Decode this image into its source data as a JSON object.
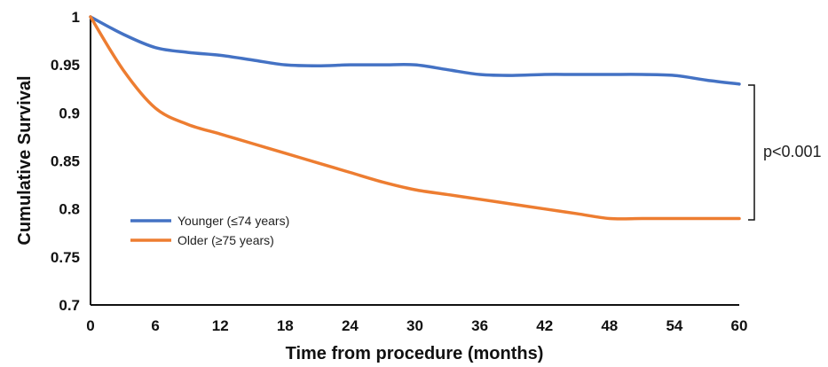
{
  "chart_data": {
    "type": "line",
    "xlabel": "Time from procedure (months)",
    "ylabel": "Cumulative Survival",
    "xlim": [
      0,
      60
    ],
    "ylim": [
      0.7,
      1
    ],
    "x_ticks": [
      "0",
      "6",
      "12",
      "18",
      "24",
      "30",
      "36",
      "42",
      "48",
      "54",
      "60"
    ],
    "y_ticks": [
      "1",
      "0.95",
      "0.9",
      "0.85",
      "0.8",
      "0.75",
      "0.7"
    ],
    "grid": false,
    "legend_position": "bottom-left",
    "annotation": "p<0.001",
    "series": [
      {
        "name": "Younger (≤74 years)",
        "color": "#4472C4",
        "x": [
          0,
          3,
          6,
          9,
          12,
          15,
          18,
          21,
          24,
          27,
          30,
          33,
          36,
          39,
          42,
          45,
          48,
          51,
          54,
          57,
          60
        ],
        "y": [
          1,
          0.982,
          0.968,
          0.963,
          0.96,
          0.955,
          0.95,
          0.949,
          0.95,
          0.95,
          0.95,
          0.945,
          0.94,
          0.939,
          0.94,
          0.94,
          0.94,
          0.94,
          0.939,
          0.934,
          0.93
        ]
      },
      {
        "name": "Older (≥75 years)",
        "color": "#ED7D31",
        "x": [
          0,
          3,
          6,
          9,
          12,
          15,
          18,
          21,
          24,
          27,
          30,
          33,
          36,
          39,
          42,
          45,
          48,
          51,
          54,
          57,
          60
        ],
        "y": [
          1,
          0.945,
          0.905,
          0.888,
          0.878,
          0.868,
          0.858,
          0.848,
          0.838,
          0.828,
          0.82,
          0.815,
          0.81,
          0.805,
          0.8,
          0.795,
          0.79,
          0.79,
          0.79,
          0.79,
          0.79
        ]
      }
    ]
  }
}
